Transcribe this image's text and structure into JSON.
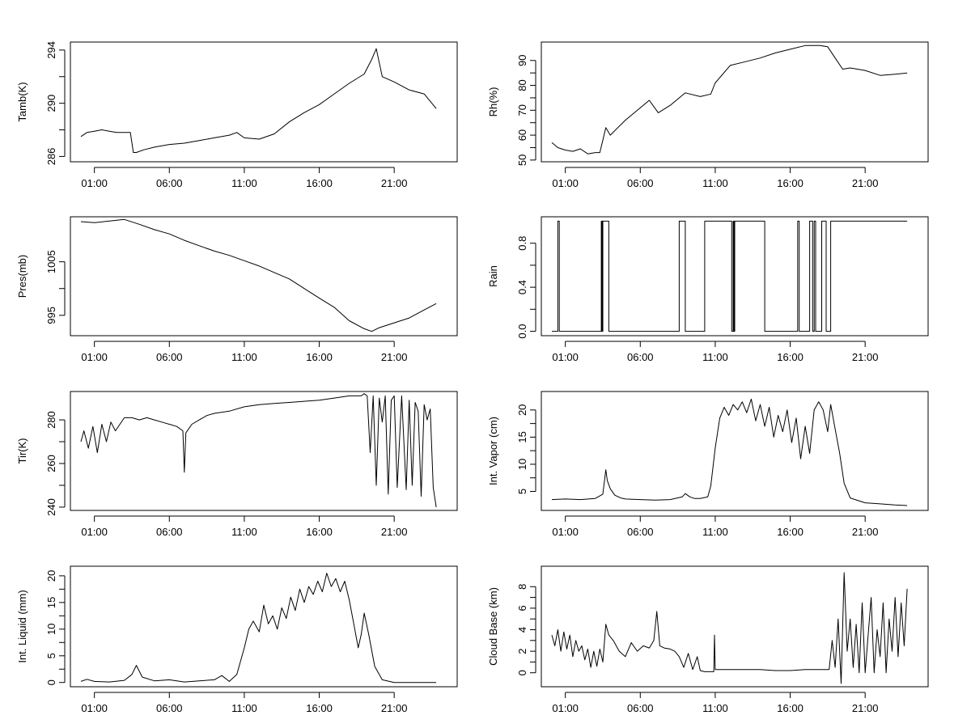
{
  "chart_data": [
    {
      "type": "line",
      "ylabel": "Tamb(K)",
      "xticks": [
        "01:00",
        "06:00",
        "11:00",
        "16:00",
        "21:00"
      ],
      "yticks": [
        286,
        290,
        294
      ],
      "ylim": [
        285.6,
        294.6
      ],
      "xlim": [
        -0.6,
        25.2
      ],
      "grid": false,
      "series": [
        {
          "x": [
            0.1,
            0.5,
            1.0,
            1.5,
            2.0,
            2.5,
            3.0,
            3.4,
            3.6,
            3.8,
            4.3,
            5.0,
            6.0,
            7.0,
            8.0,
            9.0,
            10.0,
            10.5,
            11.0,
            12.0,
            13.0,
            14.0,
            15.0,
            16.0,
            17.0,
            18.0,
            19.0,
            19.5,
            19.8,
            20.2,
            21.0,
            22.0,
            23.0,
            23.8
          ],
          "y": [
            287.5,
            287.8,
            287.9,
            288.0,
            287.9,
            287.8,
            287.8,
            287.8,
            286.3,
            286.3,
            286.5,
            286.7,
            286.9,
            287.0,
            287.2,
            287.4,
            287.6,
            287.8,
            287.4,
            287.3,
            287.7,
            288.6,
            289.3,
            289.9,
            290.7,
            291.5,
            292.2,
            293.3,
            294.1,
            292.0,
            291.6,
            291.0,
            290.7,
            289.6
          ]
        }
      ]
    },
    {
      "type": "line",
      "ylabel": "Rh(%)",
      "xticks": [
        "01:00",
        "06:00",
        "11:00",
        "16:00",
        "21:00"
      ],
      "yticks": [
        50,
        60,
        70,
        80,
        90
      ],
      "ylim": [
        49.3,
        97.4
      ],
      "xlim": [
        -0.6,
        25.2
      ],
      "grid": false,
      "series": [
        {
          "x": [
            0.1,
            0.5,
            1.0,
            1.5,
            2.0,
            2.5,
            3.0,
            3.3,
            3.5,
            3.7,
            4.0,
            5.0,
            6.0,
            6.6,
            7.2,
            8.0,
            9.0,
            10.0,
            10.7,
            11.0,
            12.0,
            13.0,
            14.0,
            15.0,
            16.0,
            17.0,
            18.0,
            18.5,
            19.0,
            19.5,
            20.0,
            21.0,
            22.0,
            23.0,
            23.8
          ],
          "y": [
            57.0,
            55.0,
            54.0,
            53.5,
            54.5,
            52.5,
            53.0,
            53.0,
            58.0,
            63.0,
            60.0,
            66.0,
            71.0,
            74.0,
            69.0,
            72.0,
            77.0,
            75.5,
            76.5,
            81.0,
            88.0,
            89.5,
            91.0,
            93.0,
            94.5,
            96.0,
            96.0,
            95.5,
            91.0,
            86.5,
            87.0,
            86.0,
            84.0,
            84.5,
            85.0
          ]
        }
      ]
    },
    {
      "type": "line",
      "ylabel": "Pres(mb)",
      "xticks": [
        "01:00",
        "06:00",
        "11:00",
        "16:00",
        "21:00"
      ],
      "yticks": [
        995,
        1005
      ],
      "ylim": [
        991.2,
        1013.4
      ],
      "xlim": [
        -0.6,
        25.2
      ],
      "grid": false,
      "series": [
        {
          "x": [
            0.1,
            1.0,
            2.0,
            3.0,
            4.0,
            5.0,
            6.0,
            7.0,
            8.0,
            9.0,
            10.0,
            11.0,
            12.0,
            13.0,
            14.0,
            15.0,
            16.0,
            17.0,
            18.0,
            19.0,
            19.5,
            20.0,
            21.0,
            22.0,
            23.0,
            23.8
          ],
          "y": [
            1012.5,
            1012.3,
            1012.6,
            1012.9,
            1012.0,
            1011.0,
            1010.2,
            1009.0,
            1008.0,
            1007.0,
            1006.2,
            1005.2,
            1004.2,
            1003.0,
            1001.8,
            1000.0,
            998.2,
            996.5,
            994.0,
            992.5,
            992.0,
            992.7,
            993.6,
            994.5,
            996.0,
            997.2
          ]
        }
      ]
    },
    {
      "type": "line",
      "ylabel": "Rain",
      "xticks": [
        "01:00",
        "06:00",
        "11:00",
        "16:00",
        "21:00"
      ],
      "yticks": [
        0.0,
        0.4,
        0.8
      ],
      "ylim": [
        -0.04,
        1.04
      ],
      "xlim": [
        -0.6,
        25.2
      ],
      "grid": false,
      "series": [
        {
          "x": [
            0.1,
            0.5,
            0.5,
            0.6,
            0.6,
            3.4,
            3.4,
            3.5,
            3.5,
            3.45,
            3.45,
            3.9,
            3.9,
            8.6,
            8.6,
            9.0,
            9.0,
            10.3,
            10.3,
            12.1,
            12.1,
            12.2,
            12.2,
            12.25,
            12.25,
            12.3,
            12.3,
            14.3,
            14.3,
            16.5,
            16.5,
            16.6,
            16.6,
            17.3,
            17.3,
            17.5,
            17.5,
            17.6,
            17.6,
            17.7,
            17.7,
            18.1,
            18.1,
            18.4,
            18.4,
            18.7,
            18.7,
            23.8
          ],
          "y": [
            0,
            0,
            1,
            1,
            0,
            0,
            1,
            1,
            0,
            0,
            1,
            1,
            0,
            0,
            1,
            1,
            0,
            0,
            1,
            1,
            0,
            0,
            1,
            1,
            0,
            0,
            1,
            1,
            0,
            0,
            1,
            1,
            0,
            0,
            1,
            1,
            0,
            0,
            1,
            1,
            0,
            0,
            1,
            1,
            0,
            0,
            1,
            1
          ]
        }
      ]
    },
    {
      "type": "line",
      "ylabel": "Tir(K)",
      "xticks": [
        "01:00",
        "06:00",
        "11:00",
        "16:00",
        "21:00"
      ],
      "yticks": [
        240,
        260,
        280
      ],
      "ylim": [
        238.5,
        293.0
      ],
      "xlim": [
        -0.6,
        25.2
      ],
      "grid": false,
      "series": [
        {
          "x": [
            0.1,
            0.3,
            0.6,
            0.9,
            1.2,
            1.5,
            1.8,
            2.1,
            2.4,
            3.0,
            3.5,
            4.0,
            4.5,
            5.0,
            5.5,
            6.0,
            6.5,
            6.9,
            7.0,
            7.1,
            7.5,
            8.0,
            8.5,
            9.0,
            10.0,
            11.0,
            12.0,
            13.0,
            14.0,
            15.0,
            16.0,
            17.0,
            18.0,
            18.8,
            19.0,
            19.2,
            19.4,
            19.6,
            19.8,
            20.0,
            20.2,
            20.4,
            20.6,
            20.8,
            21.0,
            21.2,
            21.5,
            21.8,
            22.0,
            22.2,
            22.4,
            22.6,
            22.8,
            23.0,
            23.2,
            23.4,
            23.6,
            23.8
          ],
          "y": [
            270,
            275,
            267,
            277,
            265,
            278,
            270,
            279,
            275,
            281,
            281,
            280,
            281,
            280,
            279,
            278,
            277,
            275,
            256,
            274,
            278,
            280,
            282,
            283,
            284,
            286,
            287,
            287.5,
            288,
            288.5,
            289,
            290,
            291,
            291,
            292,
            291,
            265,
            291,
            250,
            290,
            279,
            291,
            246,
            289,
            291,
            249,
            291,
            248,
            289,
            250,
            288,
            284,
            245,
            287,
            280,
            285,
            249,
            240
          ]
        }
      ]
    },
    {
      "type": "line",
      "ylabel": "Int. Vapor (cm)",
      "xticks": [
        "01:00",
        "06:00",
        "11:00",
        "16:00",
        "21:00"
      ],
      "yticks": [
        5,
        10,
        15,
        20
      ],
      "ylim": [
        1.5,
        23.4
      ],
      "xlim": [
        -0.6,
        25.2
      ],
      "grid": false,
      "series": [
        {
          "x": [
            0.1,
            1.0,
            2.0,
            3.0,
            3.5,
            3.7,
            3.8,
            4.0,
            4.3,
            4.7,
            5.0,
            6.0,
            7.0,
            8.0,
            8.8,
            9.0,
            9.3,
            9.6,
            10.0,
            10.5,
            10.7,
            11.0,
            11.3,
            11.6,
            11.9,
            12.2,
            12.5,
            12.8,
            13.1,
            13.4,
            13.7,
            14.0,
            14.3,
            14.6,
            14.9,
            15.2,
            15.5,
            15.8,
            16.1,
            16.4,
            16.7,
            17.0,
            17.3,
            17.6,
            17.9,
            18.2,
            18.5,
            18.7,
            19.0,
            19.3,
            19.6,
            20.0,
            21.0,
            22.0,
            23.0,
            23.8
          ],
          "y": [
            3.5,
            3.6,
            3.5,
            3.7,
            4.5,
            9.0,
            7.0,
            5.5,
            4.3,
            3.8,
            3.6,
            3.5,
            3.4,
            3.5,
            4.0,
            4.6,
            4.0,
            3.7,
            3.7,
            4.0,
            6.0,
            13.0,
            18.5,
            20.5,
            19.0,
            21.0,
            20.0,
            21.5,
            19.5,
            22.0,
            18.0,
            21.0,
            17.0,
            20.5,
            15.0,
            19.0,
            16.0,
            20.0,
            14.0,
            18.5,
            11.0,
            17.0,
            12.0,
            20.0,
            21.5,
            20.0,
            16.0,
            21.0,
            16.5,
            12.0,
            6.5,
            3.8,
            2.9,
            2.7,
            2.5,
            2.4
          ]
        }
      ]
    },
    {
      "type": "line",
      "ylabel": "Int. Liquid (mm)",
      "xticks": [
        "01:00",
        "06:00",
        "11:00",
        "16:00",
        "21:00"
      ],
      "yticks": [
        0,
        5,
        10,
        15,
        20
      ],
      "ylim": [
        -0.8,
        21.8
      ],
      "xlim": [
        -0.6,
        25.2
      ],
      "grid": false,
      "series": [
        {
          "x": [
            0.1,
            0.5,
            1.0,
            2.0,
            3.0,
            3.5,
            3.8,
            4.2,
            5.0,
            6.0,
            7.0,
            8.0,
            9.0,
            9.5,
            10.0,
            10.5,
            11.0,
            11.3,
            11.6,
            12.0,
            12.3,
            12.6,
            12.9,
            13.2,
            13.5,
            13.8,
            14.1,
            14.4,
            14.7,
            15.0,
            15.3,
            15.6,
            15.9,
            16.2,
            16.5,
            16.8,
            17.1,
            17.4,
            17.7,
            18.0,
            18.3,
            18.6,
            18.8,
            19.0,
            19.3,
            19.7,
            20.2,
            21.0,
            22.0,
            23.0,
            23.8
          ],
          "y": [
            0.2,
            0.6,
            0.2,
            0.1,
            0.4,
            1.5,
            3.2,
            1.0,
            0.3,
            0.5,
            0.1,
            0.3,
            0.5,
            1.3,
            0.2,
            1.5,
            6.5,
            10.0,
            11.5,
            9.5,
            14.5,
            11.0,
            12.5,
            10.0,
            14.0,
            12.0,
            16.0,
            13.5,
            17.5,
            15.0,
            18.0,
            16.5,
            19.0,
            17.0,
            20.5,
            18.0,
            19.5,
            17.0,
            19.0,
            15.5,
            11.0,
            6.5,
            9.0,
            13.0,
            9.0,
            3.0,
            0.5,
            0.0,
            0.0,
            0.0,
            0.0
          ]
        }
      ]
    },
    {
      "type": "line",
      "ylabel": "Cloud Base (km)",
      "xticks": [
        "01:00",
        "06:00",
        "11:00",
        "16:00",
        "21:00"
      ],
      "yticks": [
        0,
        2,
        4,
        6,
        8
      ],
      "ylim": [
        -1.3,
        9.9
      ],
      "xlim": [
        -0.6,
        25.2
      ],
      "grid": false,
      "series": [
        {
          "x": [
            0.1,
            0.3,
            0.5,
            0.7,
            0.9,
            1.1,
            1.3,
            1.5,
            1.7,
            1.9,
            2.1,
            2.3,
            2.5,
            2.7,
            2.9,
            3.1,
            3.3,
            3.5,
            3.7,
            3.9,
            4.2,
            4.6,
            5.0,
            5.4,
            5.8,
            6.2,
            6.6,
            6.9,
            7.1,
            7.3,
            7.6,
            8.0,
            8.3,
            8.6,
            8.9,
            9.2,
            9.5,
            9.8,
            10.0,
            10.3,
            10.6,
            10.9,
            10.95,
            11.0,
            11.2,
            12.0,
            13.0,
            14.0,
            15.0,
            16.0,
            17.0,
            18.0,
            18.6,
            18.8,
            19.0,
            19.2,
            19.4,
            19.6,
            19.8,
            20.0,
            20.2,
            20.4,
            20.6,
            20.8,
            21.0,
            21.2,
            21.4,
            21.6,
            21.8,
            22.0,
            22.2,
            22.4,
            22.6,
            22.8,
            23.0,
            23.2,
            23.4,
            23.6,
            23.8
          ],
          "y": [
            3.5,
            2.5,
            4.0,
            2.0,
            3.8,
            2.2,
            3.5,
            1.5,
            3.0,
            2.0,
            2.5,
            1.2,
            2.2,
            0.5,
            2.0,
            0.6,
            2.2,
            1.0,
            4.5,
            3.5,
            3.0,
            2.0,
            1.5,
            2.8,
            2.0,
            2.5,
            2.3,
            3.0,
            5.7,
            2.5,
            2.3,
            2.2,
            2.0,
            1.5,
            0.5,
            1.8,
            0.3,
            1.5,
            0.2,
            0.1,
            0.1,
            0.1,
            3.5,
            0.3,
            0.3,
            0.3,
            0.3,
            0.3,
            0.2,
            0.2,
            0.3,
            0.3,
            0.3,
            3.0,
            0.5,
            5.0,
            -1.0,
            9.3,
            2.0,
            5.0,
            0.5,
            4.5,
            0.0,
            6.5,
            0.0,
            3.5,
            7.0,
            0.0,
            4.0,
            1.5,
            6.5,
            0.0,
            5.0,
            2.0,
            7.0,
            1.5,
            6.5,
            2.5,
            7.8
          ]
        }
      ]
    }
  ]
}
